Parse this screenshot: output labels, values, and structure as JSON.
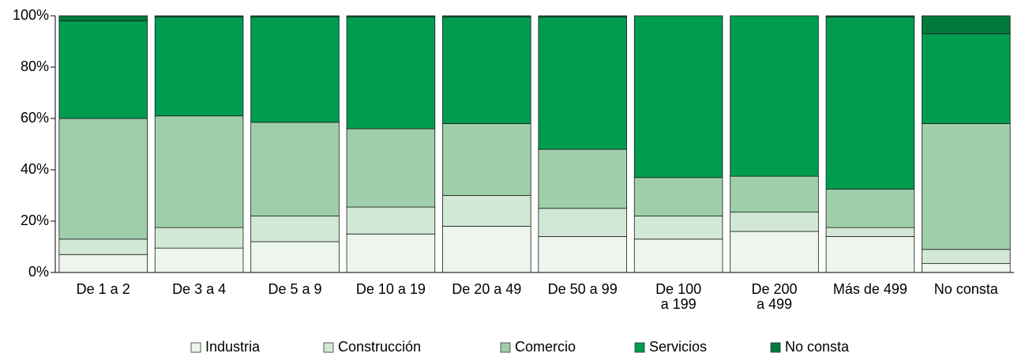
{
  "chart_data": {
    "type": "stacked_bar",
    "categories": [
      "De 1 a 2",
      "De 3 a 4",
      "De 5 a 9",
      "De 10 a 19",
      "De 20 a 49",
      "De 50 a 99",
      "De 100\na 199",
      "De 200\na 499",
      "Más de 499",
      "No consta"
    ],
    "series": [
      {
        "name": "Industria",
        "color": "#edf5ed",
        "values": [
          7,
          9.5,
          12,
          15,
          18,
          14,
          13,
          16,
          14,
          3.5
        ]
      },
      {
        "name": "Construcción",
        "color": "#d2e8d6",
        "values": [
          6,
          8,
          10,
          10.5,
          12,
          11,
          9,
          7.5,
          3.5,
          5.5
        ]
      },
      {
        "name": "Comercio",
        "color": "#9fcfaa",
        "values": [
          47,
          43.5,
          36.5,
          30.5,
          28,
          23,
          15,
          14,
          15,
          49
        ]
      },
      {
        "name": "Servicios",
        "color": "#009d4f",
        "values": [
          38,
          38.5,
          41,
          43.5,
          41.5,
          51.5,
          63,
          62.5,
          67,
          35
        ]
      },
      {
        "name": "No consta",
        "color": "#007a3a",
        "values": [
          2,
          0.5,
          0.5,
          0.5,
          0.5,
          0.5,
          0,
          0,
          0.5,
          7
        ]
      }
    ],
    "ylim": [
      0,
      100
    ],
    "yticks": [
      {
        "value": 0,
        "label": "0%"
      },
      {
        "value": 20,
        "label": "20%"
      },
      {
        "value": 40,
        "label": "40%"
      },
      {
        "value": 60,
        "label": "60%"
      },
      {
        "value": 80,
        "label": "80%"
      },
      {
        "value": 100,
        "label": "100%"
      }
    ],
    "legend": "bottom"
  }
}
